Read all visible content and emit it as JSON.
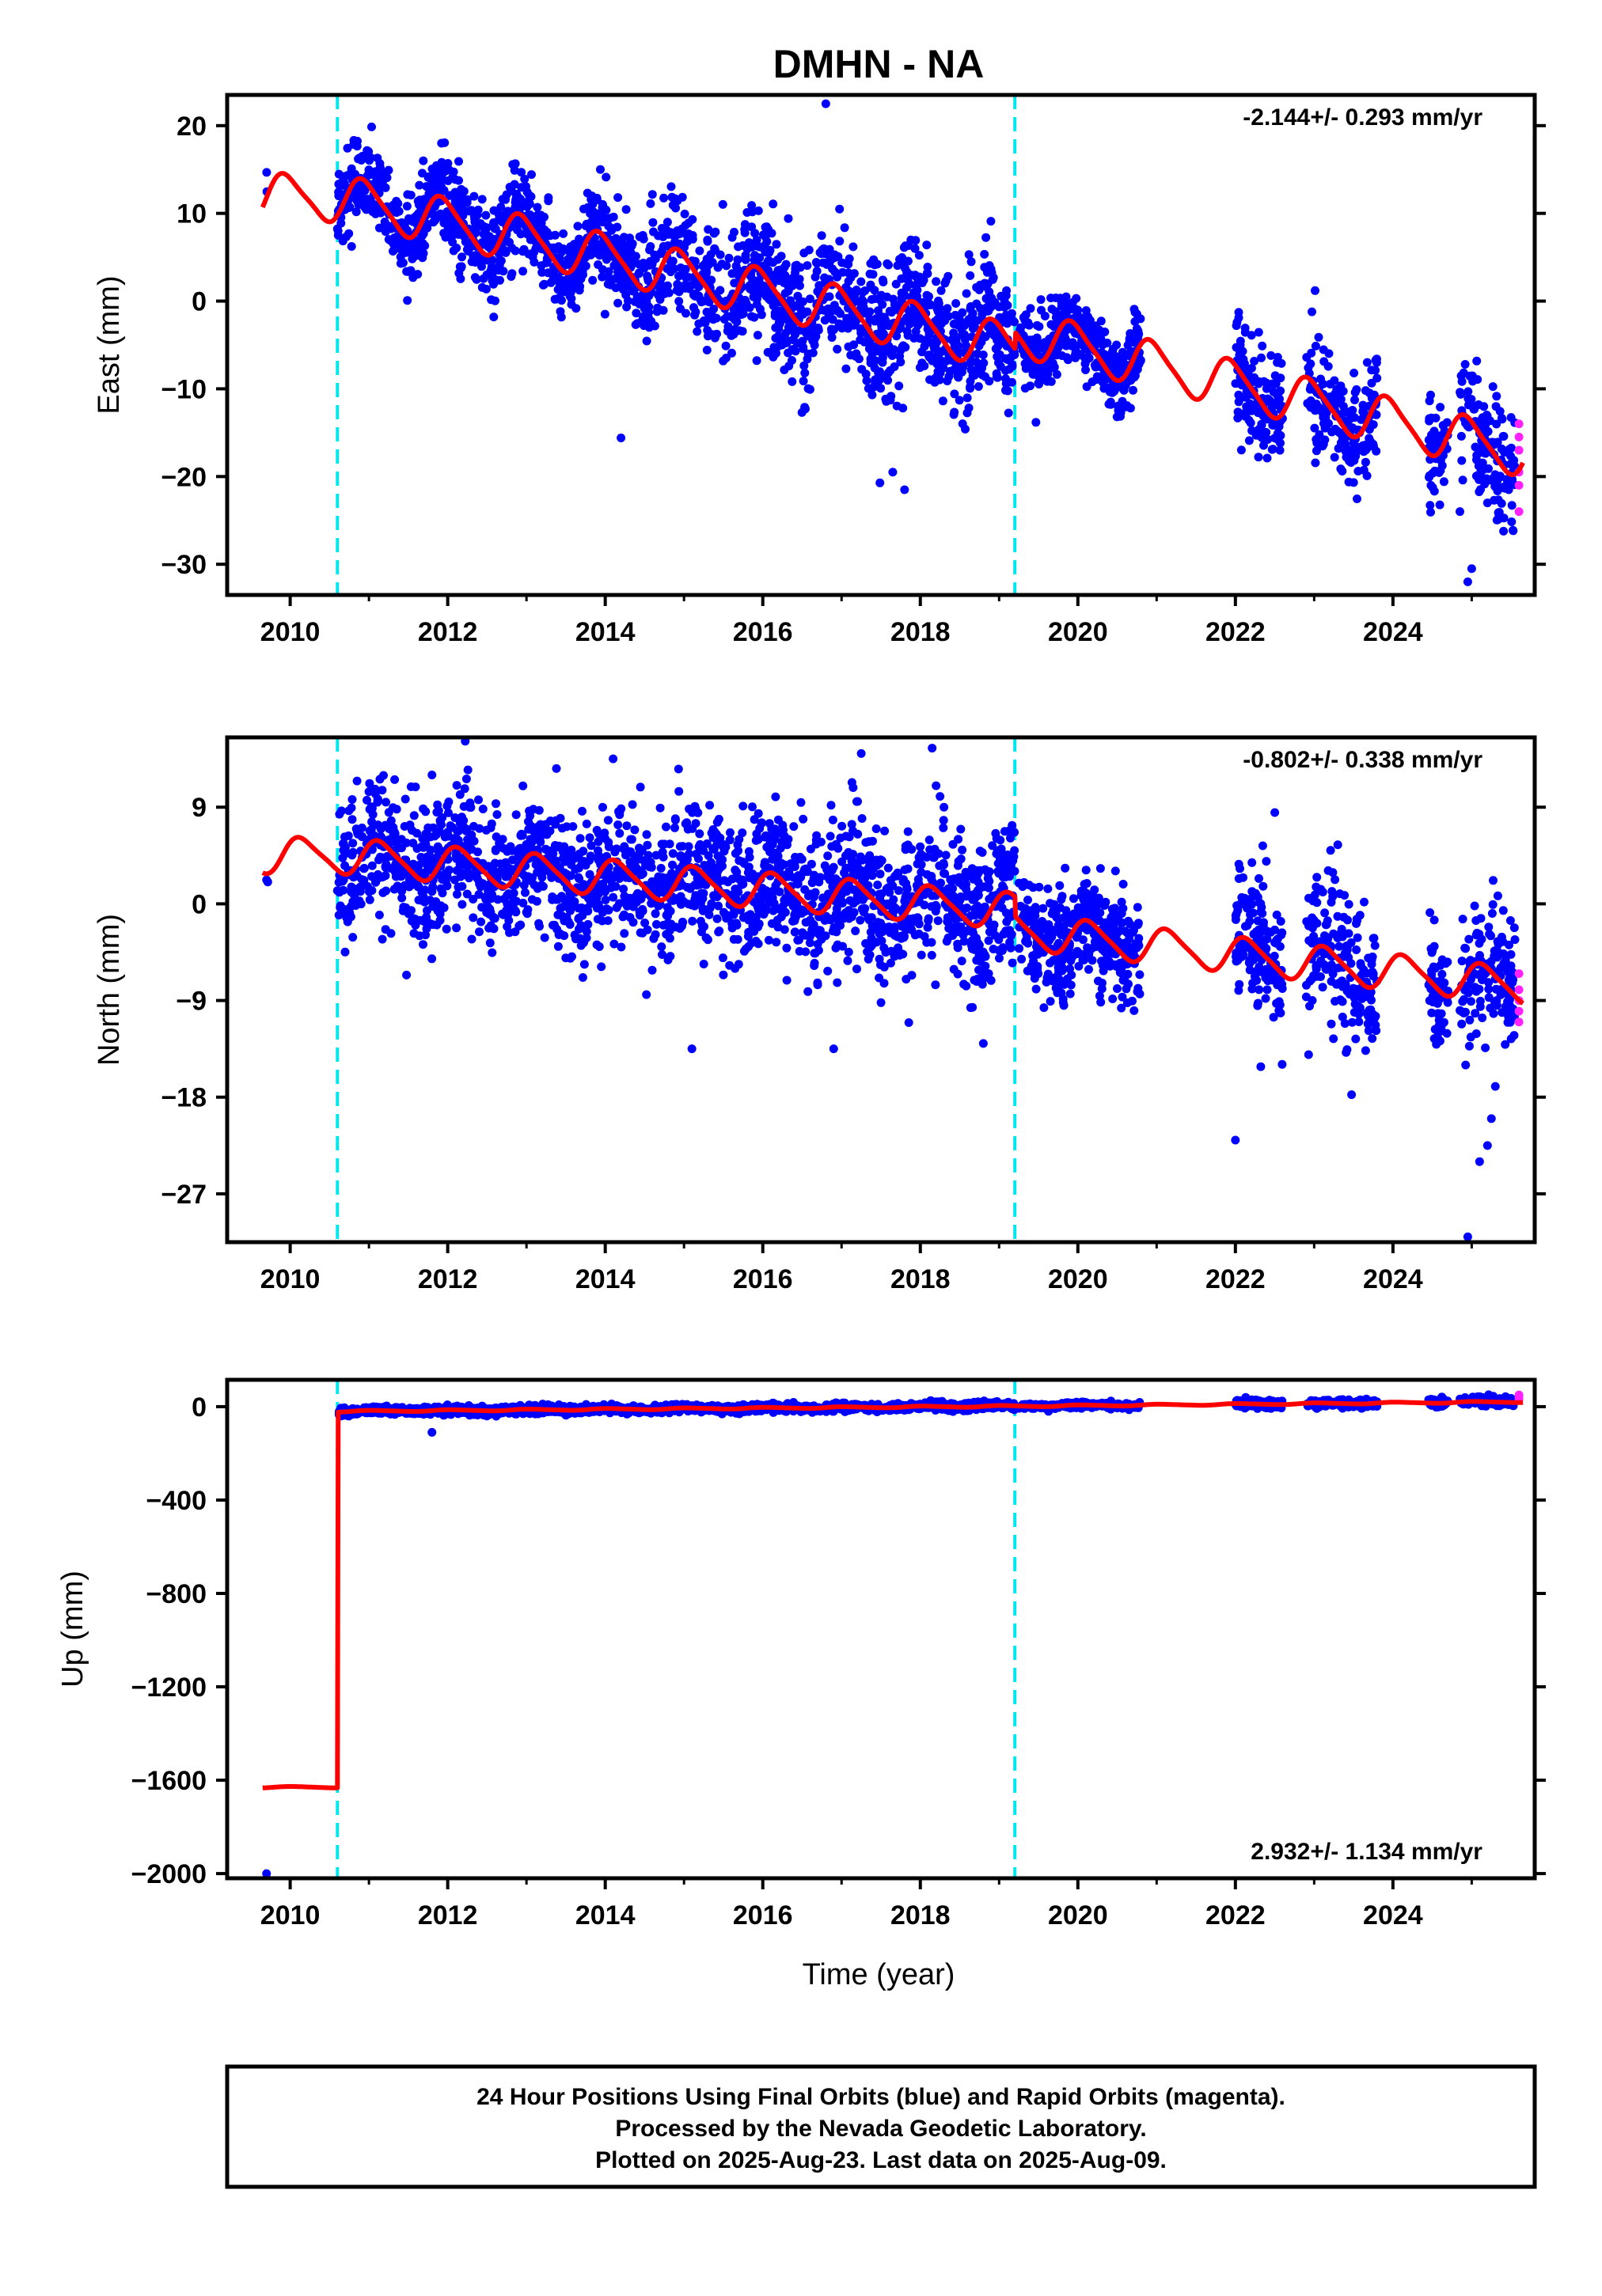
{
  "title": "DMHN - NA",
  "xlabel": "Time (year)",
  "x_ticks": [
    2010,
    2012,
    2014,
    2016,
    2018,
    2020,
    2022,
    2024
  ],
  "xlim": [
    2009.2,
    2025.8
  ],
  "colors": {
    "final_orbits": "#0000ff",
    "rapid_orbits": "#ff22ff",
    "model": "#ff0000",
    "events": "#00e5ee",
    "frame": "#000000"
  },
  "caption": [
    "24 Hour Positions Using Final Orbits (blue) and Rapid Orbits (magenta).",
    "Processed by the Nevada Geodetic Laboratory.",
    "Plotted on 2025-Aug-23. Last data on 2025-Aug-09."
  ],
  "chart_data": [
    {
      "type": "scatter",
      "title": "DMHN - NA",
      "xlabel": "",
      "ylabel": "East (mm)",
      "ylim": [
        -33.5,
        23.5
      ],
      "y_ticks": [
        20,
        10,
        0,
        -10,
        -20,
        -30
      ],
      "rate_label": "-2.144+/- 0.293 mm/yr",
      "event_lines": [
        2010.6,
        2019.2
      ],
      "model": {
        "type": "seasonal",
        "pieces": [
          [
            2009.65,
            2010.6,
            11.8,
            0
          ],
          [
            2010.6,
            2019.2,
            11.8,
            -2.0
          ],
          [
            2019.2,
            2025.65,
            -3.5,
            -2.144
          ]
        ],
        "amp1": 2.6,
        "amp2": 0.5,
        "phase": 0.3
      },
      "segments": [
        {
          "x0": 2009.7,
          "x1": 2009.75,
          "n": 2,
          "noise": 1.0
        },
        {
          "x0": 2010.6,
          "x1": 2014.45,
          "n": 900,
          "noise": 2.6
        },
        {
          "x0": 2014.45,
          "x1": 2019.2,
          "n": 1100,
          "noise": 3.6
        },
        {
          "x0": 2019.25,
          "x1": 2020.8,
          "n": 400,
          "noise": 2.0
        },
        {
          "x0": 2022.0,
          "x1": 2022.6,
          "n": 150,
          "noise": 3.0
        },
        {
          "x0": 2022.9,
          "x1": 2023.8,
          "n": 180,
          "noise": 3.0
        },
        {
          "x0": 2024.45,
          "x1": 2024.7,
          "n": 60,
          "noise": 2.5
        },
        {
          "x0": 2024.85,
          "x1": 2025.55,
          "n": 140,
          "noise": 3.5
        }
      ],
      "outliers": [
        [
          2016.8,
          22.5
        ],
        [
          2014.2,
          -15.6
        ],
        [
          2017.65,
          -19.5
        ],
        [
          2017.8,
          -21.5
        ],
        [
          2024.95,
          -32.0
        ],
        [
          2025.0,
          -30.5
        ],
        [
          2024.85,
          -24.0
        ],
        [
          2025.2,
          -23.0
        ]
      ],
      "rapid": [
        [
          2025.6,
          -14.0
        ],
        [
          2025.6,
          -15.5
        ],
        [
          2025.6,
          -17.0
        ],
        [
          2025.6,
          -19.5
        ],
        [
          2025.6,
          -21.0
        ],
        [
          2025.6,
          -24.0
        ]
      ]
    },
    {
      "type": "scatter",
      "xlabel": "",
      "ylabel": "North (mm)",
      "ylim": [
        -31.5,
        15.5
      ],
      "y_ticks": [
        9,
        0,
        -9,
        -18,
        -27
      ],
      "rate_label": "-0.802+/- 0.338 mm/yr",
      "event_lines": [
        2010.6,
        2019.2
      ],
      "model": {
        "type": "seasonal",
        "pieces": [
          [
            2009.65,
            2010.6,
            4.5,
            0
          ],
          [
            2010.6,
            2019.2,
            4.5,
            -0.6
          ],
          [
            2019.2,
            2025.65,
            -2.5,
            -0.802
          ]
        ],
        "amp1": 1.6,
        "amp2": 0.3,
        "phase": 0.1
      },
      "segments": [
        {
          "x0": 2009.7,
          "x1": 2009.75,
          "n": 2,
          "noise": 1.0
        },
        {
          "x0": 2010.6,
          "x1": 2014.6,
          "n": 900,
          "noise": 3.2
        },
        {
          "x0": 2014.6,
          "x1": 2019.2,
          "n": 1100,
          "noise": 3.2
        },
        {
          "x0": 2019.25,
          "x1": 2020.8,
          "n": 400,
          "noise": 2.3
        },
        {
          "x0": 2022.0,
          "x1": 2022.6,
          "n": 150,
          "noise": 3.5
        },
        {
          "x0": 2022.9,
          "x1": 2023.8,
          "n": 180,
          "noise": 3.5
        },
        {
          "x0": 2024.45,
          "x1": 2024.7,
          "n": 60,
          "noise": 2.5
        },
        {
          "x0": 2024.85,
          "x1": 2025.55,
          "n": 140,
          "noise": 3.5
        }
      ],
      "outliers": [
        [
          2018.15,
          14.5
        ],
        [
          2018.2,
          11.0
        ],
        [
          2018.25,
          10.0
        ],
        [
          2018.3,
          9.0
        ],
        [
          2014.1,
          13.5
        ],
        [
          2011.8,
          12.0
        ],
        [
          2017.25,
          14.0
        ],
        [
          2015.1,
          -13.5
        ],
        [
          2022.0,
          -22.0
        ],
        [
          2024.95,
          -31.0
        ],
        [
          2025.1,
          -24.0
        ],
        [
          2025.2,
          -22.5
        ],
        [
          2025.25,
          -20.0
        ],
        [
          2025.3,
          -17.0
        ],
        [
          2016.9,
          -13.5
        ],
        [
          2018.8,
          -13.0
        ],
        [
          2022.5,
          8.5
        ],
        [
          2023.3,
          5.5
        ]
      ],
      "rapid": [
        [
          2025.6,
          -6.5
        ],
        [
          2025.6,
          -8.0
        ],
        [
          2025.6,
          -9.0
        ],
        [
          2025.6,
          -10.0
        ],
        [
          2025.6,
          -11.0
        ]
      ]
    },
    {
      "type": "scatter",
      "xlabel": "Time (year)",
      "ylabel": "Up (mm)",
      "ylim": [
        -2020,
        115
      ],
      "y_ticks": [
        0,
        -400,
        -800,
        -1200,
        -1600,
        -2000
      ],
      "rate_label": "2.932+/- 1.134 mm/yr",
      "event_lines": [
        2010.6,
        2019.2
      ],
      "model": {
        "type": "seasonal",
        "pieces": [
          [
            2009.65,
            2010.6,
            -1630,
            0
          ],
          [
            2010.6,
            2019.2,
            -20,
            2.6
          ],
          [
            2019.2,
            2025.65,
            2,
            2.932
          ]
        ],
        "amp1": 3.0,
        "amp2": 0.5,
        "phase": 0.2
      },
      "segments": [
        {
          "x0": 2010.62,
          "x1": 2019.2,
          "n": 1800,
          "noise": 8.0
        },
        {
          "x0": 2019.25,
          "x1": 2020.8,
          "n": 300,
          "noise": 6.0
        },
        {
          "x0": 2022.0,
          "x1": 2022.6,
          "n": 150,
          "noise": 9.0
        },
        {
          "x0": 2022.9,
          "x1": 2023.8,
          "n": 180,
          "noise": 9.0
        },
        {
          "x0": 2024.45,
          "x1": 2024.7,
          "n": 60,
          "noise": 8.0
        },
        {
          "x0": 2024.85,
          "x1": 2025.55,
          "n": 140,
          "noise": 9.0
        }
      ],
      "outliers": [
        [
          2009.7,
          -2000
        ],
        [
          2011.8,
          -110
        ],
        [
          2010.65,
          -40
        ]
      ],
      "rapid": [
        [
          2025.6,
          40
        ],
        [
          2025.6,
          50
        ],
        [
          2025.6,
          30
        ]
      ]
    }
  ]
}
